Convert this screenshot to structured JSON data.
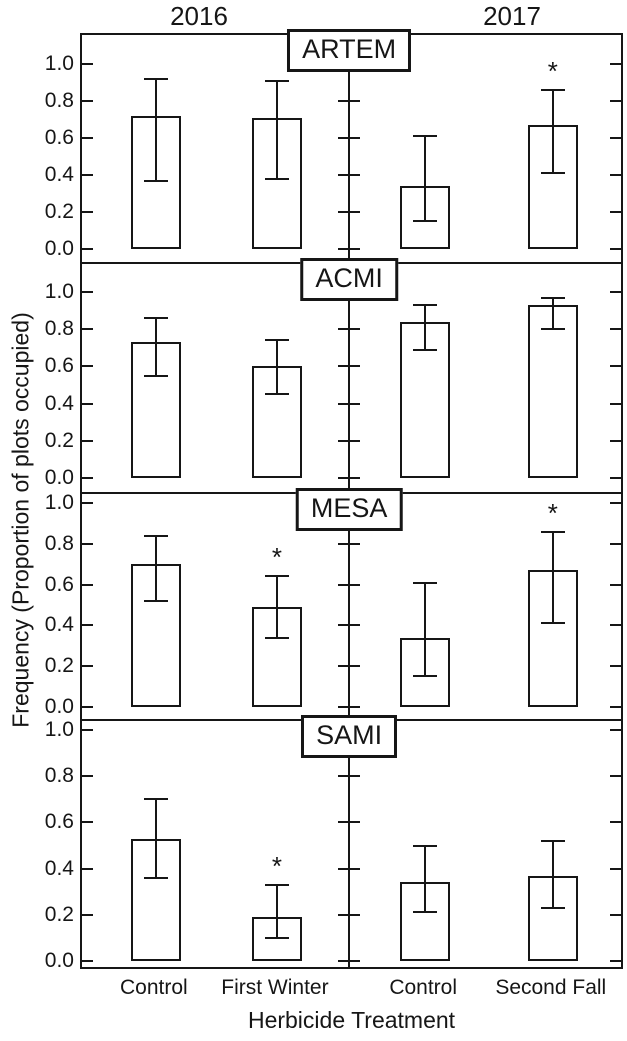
{
  "chart_data": {
    "type": "bar",
    "title": "",
    "xlabel": "Herbicide Treatment",
    "ylabel": "Frequency (Proportion of plots occupied)",
    "ylim": [
      0.0,
      1.0
    ],
    "yticks": [
      0.0,
      0.2,
      0.4,
      0.6,
      0.8,
      1.0
    ],
    "ytick_labels": [
      "0.0",
      "0.2",
      "0.4",
      "0.6",
      "0.8",
      "1.0"
    ],
    "grid": false,
    "year_labels": [
      "2016",
      "2017"
    ],
    "categories": [
      "Control",
      "First Winter",
      "Control",
      "Second Fall"
    ],
    "significance_marker": "*",
    "bar_fill": "#ffffff",
    "line_color": "#161616",
    "panels": [
      {
        "label": "ARTEM",
        "bars": [
          {
            "year": "2016",
            "treatment": "Control",
            "value": 0.72,
            "ci_low": 0.37,
            "ci_high": 0.92,
            "significant": false
          },
          {
            "year": "2016",
            "treatment": "First Winter",
            "value": 0.71,
            "ci_low": 0.38,
            "ci_high": 0.91,
            "significant": false
          },
          {
            "year": "2017",
            "treatment": "Control",
            "value": 0.34,
            "ci_low": 0.15,
            "ci_high": 0.61,
            "significant": false
          },
          {
            "year": "2017",
            "treatment": "Second Fall",
            "value": 0.67,
            "ci_low": 0.41,
            "ci_high": 0.86,
            "significant": true
          }
        ]
      },
      {
        "label": "ACMI",
        "bars": [
          {
            "year": "2016",
            "treatment": "Control",
            "value": 0.73,
            "ci_low": 0.55,
            "ci_high": 0.86,
            "significant": false
          },
          {
            "year": "2016",
            "treatment": "First Winter",
            "value": 0.6,
            "ci_low": 0.45,
            "ci_high": 0.74,
            "significant": false
          },
          {
            "year": "2017",
            "treatment": "Control",
            "value": 0.84,
            "ci_low": 0.69,
            "ci_high": 0.93,
            "significant": false
          },
          {
            "year": "2017",
            "treatment": "Second Fall",
            "value": 0.93,
            "ci_low": 0.8,
            "ci_high": 0.97,
            "significant": false
          }
        ]
      },
      {
        "label": "MESA",
        "bars": [
          {
            "year": "2016",
            "treatment": "Control",
            "value": 0.7,
            "ci_low": 0.52,
            "ci_high": 0.84,
            "significant": false
          },
          {
            "year": "2016",
            "treatment": "First Winter",
            "value": 0.49,
            "ci_low": 0.34,
            "ci_high": 0.64,
            "significant": true
          },
          {
            "year": "2017",
            "treatment": "Control",
            "value": 0.34,
            "ci_low": 0.15,
            "ci_high": 0.61,
            "significant": false
          },
          {
            "year": "2017",
            "treatment": "Second Fall",
            "value": 0.67,
            "ci_low": 0.41,
            "ci_high": 0.86,
            "significant": true
          }
        ]
      },
      {
        "label": "SAMI",
        "bars": [
          {
            "year": "2016",
            "treatment": "Control",
            "value": 0.53,
            "ci_low": 0.36,
            "ci_high": 0.7,
            "significant": false
          },
          {
            "year": "2016",
            "treatment": "First Winter",
            "value": 0.19,
            "ci_low": 0.1,
            "ci_high": 0.33,
            "significant": true
          },
          {
            "year": "2017",
            "treatment": "Control",
            "value": 0.34,
            "ci_low": 0.21,
            "ci_high": 0.5,
            "significant": false
          },
          {
            "year": "2017",
            "treatment": "Second Fall",
            "value": 0.37,
            "ci_low": 0.23,
            "ci_high": 0.52,
            "significant": false
          }
        ]
      }
    ]
  }
}
